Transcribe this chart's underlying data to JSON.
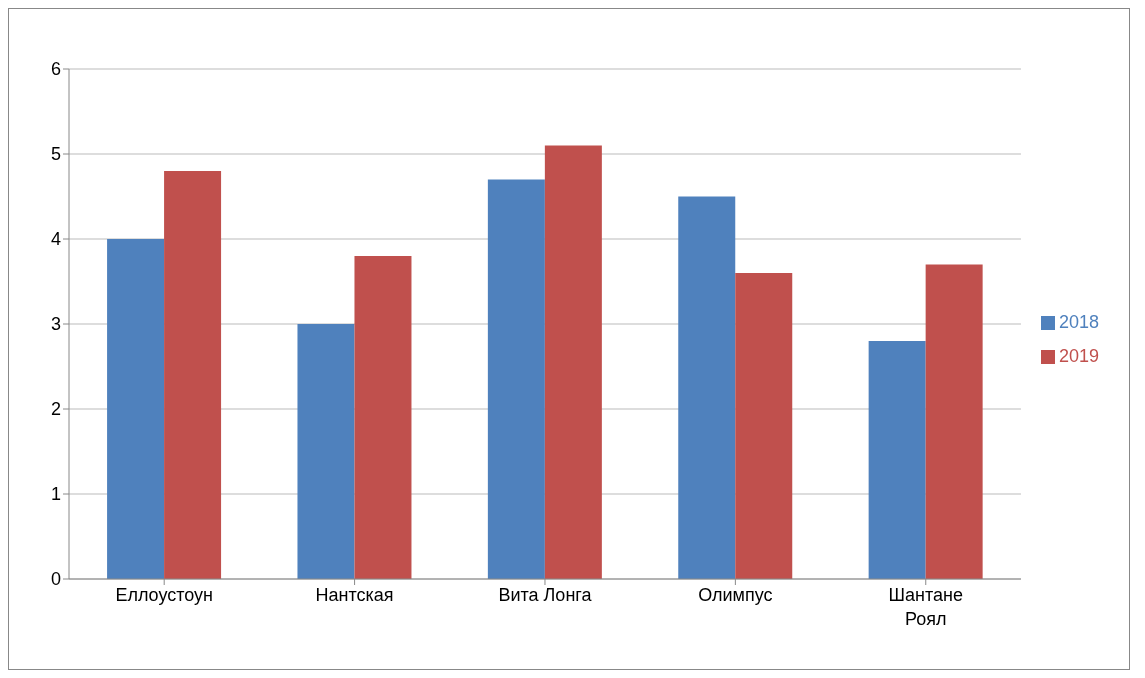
{
  "chart_data": {
    "type": "bar",
    "categories": [
      "Еллоустоун",
      "Нантская",
      "Вита Лонга",
      "Олимпус",
      "Шантане Роял"
    ],
    "series": [
      {
        "name": "2018",
        "color": "#4f81bd",
        "values": [
          4.0,
          3.0,
          4.7,
          4.5,
          2.8
        ]
      },
      {
        "name": "2019",
        "color": "#c0504d",
        "values": [
          4.8,
          3.8,
          5.1,
          3.6,
          3.7
        ]
      }
    ],
    "ylim": [
      0,
      6
    ],
    "yticks": [
      0,
      1,
      2,
      3,
      4,
      5,
      6
    ],
    "grid": "y",
    "legend": "right"
  }
}
